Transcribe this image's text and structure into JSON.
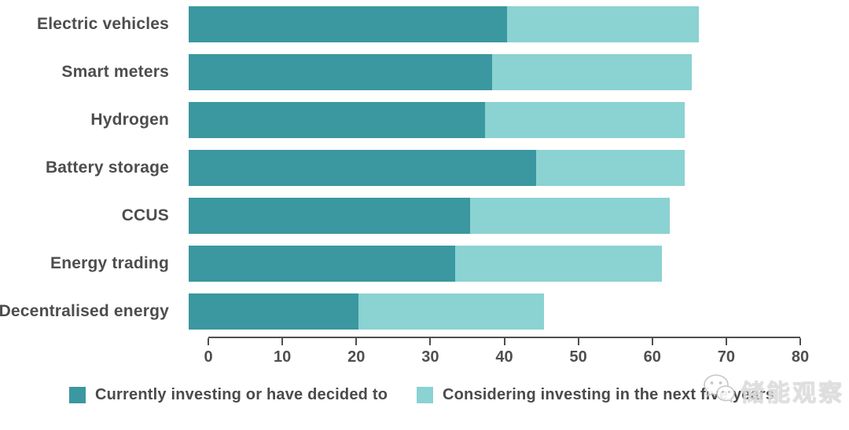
{
  "chart_data": {
    "type": "bar",
    "subtype": "horizontal-stacked",
    "title": "",
    "xlabel": "",
    "ylabel": "",
    "categories": [
      "Electric vehicles",
      "Smart meters",
      "Hydrogen",
      "Battery storage",
      "CCUS",
      "Energy trading",
      "Decentralised energy"
    ],
    "series": [
      {
        "name": "Currently investing or have decided to",
        "color": "#3b97a0",
        "values": [
          43,
          41,
          40,
          47,
          38,
          36,
          23
        ]
      },
      {
        "name": "Considering investing in the next five years",
        "color": "#8bd2d2",
        "values": [
          26,
          27,
          27,
          20,
          27,
          28,
          25
        ]
      }
    ],
    "totals": [
      69,
      68,
      67,
      67,
      65,
      64,
      48
    ],
    "xlim": [
      0,
      80
    ],
    "xticks": [
      0,
      10,
      20,
      30,
      40,
      50,
      60,
      70,
      80
    ],
    "grid": false,
    "legend_position": "bottom"
  },
  "colors": {
    "series_dark": "#3b97a0",
    "series_light": "#8bd2d2",
    "axis": "#4f4f4f",
    "label_text": "#4d4d4d",
    "watermark": "#dcdcdc"
  },
  "watermark": {
    "text": "储能观察",
    "icon": "wechat-icon"
  }
}
